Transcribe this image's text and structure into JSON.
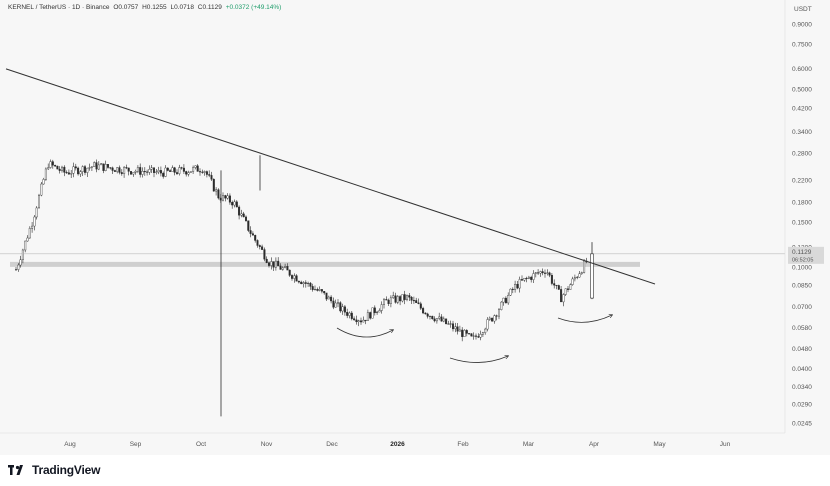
{
  "header": {
    "symbol": "KERNEL / TetherUS · 1D · Binance",
    "open": "O0.0757",
    "high": "H0.1255",
    "low": "L0.0718",
    "close": "C0.1129",
    "change": "+0.0372 (+49.14%)"
  },
  "branding": {
    "name": "TradingView"
  },
  "colors": {
    "candle": "#2b2b2b",
    "trendline": "#333333",
    "support_band": "#c8c8c8",
    "background": "#f7f7f7",
    "price_label_bg": "#d9d9d9"
  },
  "chart_data": {
    "type": "candlestick",
    "title": "",
    "xlabel": "",
    "ylabel": "",
    "axis_unit": "USDT",
    "log_scale": true,
    "grid": false,
    "ylim": [
      0.022,
      1.05
    ],
    "y_ticks": [
      "0.9000",
      "0.7500",
      "0.6000",
      "0.5000",
      "0.4200",
      "0.3400",
      "0.2800",
      "0.2200",
      "0.1800",
      "0.1500",
      "0.1200",
      "0.1000",
      "0.0850",
      "0.0700",
      "0.0580",
      "0.0480",
      "0.0400",
      "0.0340",
      "0.0290",
      "0.0245"
    ],
    "x_ticks": [
      {
        "label": "Aug",
        "bold": false
      },
      {
        "label": "Sep",
        "bold": false
      },
      {
        "label": "Oct",
        "bold": false
      },
      {
        "label": "Nov",
        "bold": false
      },
      {
        "label": "Dec",
        "bold": false
      },
      {
        "label": "2026",
        "bold": true
      },
      {
        "label": "Feb",
        "bold": false
      },
      {
        "label": "Mar",
        "bold": false
      },
      {
        "label": "Apr",
        "bold": false
      },
      {
        "label": "May",
        "bold": false
      },
      {
        "label": "Jun",
        "bold": false
      }
    ],
    "last_price": {
      "value": "0.1129",
      "countdown": "06:52:05",
      "level": 0.1129
    },
    "support_band": [
      0.1015,
      0.105
    ],
    "trendline": {
      "from": {
        "date": "Jul 2025",
        "price": 0.6
      },
      "to": {
        "date": "May 2026",
        "price": 0.086
      }
    },
    "anchors": [
      {
        "date": "Jul 2025",
        "close": 0.098
      },
      {
        "date": "Jul 2025",
        "close": 0.15
      },
      {
        "date": "Jul 2025",
        "close": 0.255
      },
      {
        "date": "Aug 2025",
        "close": 0.235
      },
      {
        "date": "Aug 2025",
        "close": 0.25
      },
      {
        "date": "Sep 2025",
        "close": 0.24
      },
      {
        "date": "Sep 2025",
        "close": 0.235
      },
      {
        "date": "Oct 2025",
        "close": 0.24
      },
      {
        "date": "Oct 2025",
        "close": 0.245
      },
      {
        "date": "Oct 2025",
        "close": 0.19
      },
      {
        "date": "Oct 2025",
        "close": 0.18
      },
      {
        "date": "Nov 2025",
        "close": 0.13
      },
      {
        "date": "Nov 2025",
        "close": 0.105
      },
      {
        "date": "Nov 2025",
        "close": 0.098
      },
      {
        "date": "Nov 2025",
        "close": 0.09
      },
      {
        "date": "Dec 2025",
        "close": 0.079
      },
      {
        "date": "Dec 2025",
        "close": 0.068
      },
      {
        "date": "Dec 2025",
        "close": 0.062
      },
      {
        "date": "Jan 2026",
        "close": 0.074
      },
      {
        "date": "Jan 2026",
        "close": 0.076
      },
      {
        "date": "Jan 2026",
        "close": 0.066
      },
      {
        "date": "Feb 2026",
        "close": 0.058
      },
      {
        "date": "Feb 2026",
        "close": 0.052
      },
      {
        "date": "Feb 2026",
        "close": 0.064
      },
      {
        "date": "Mar 2026",
        "close": 0.085
      },
      {
        "date": "Mar 2026",
        "close": 0.092
      },
      {
        "date": "Mar 2026",
        "close": 0.098
      },
      {
        "date": "Mar 2026",
        "close": 0.076
      },
      {
        "date": "Apr 2026",
        "close": 0.1129
      }
    ],
    "spike_wicks": [
      {
        "date": "Oct 2025",
        "low": 0.026
      },
      {
        "date": "Oct 2025",
        "high": 0.275
      },
      {
        "date": "Apr 2026",
        "high": 0.1255
      }
    ]
  }
}
